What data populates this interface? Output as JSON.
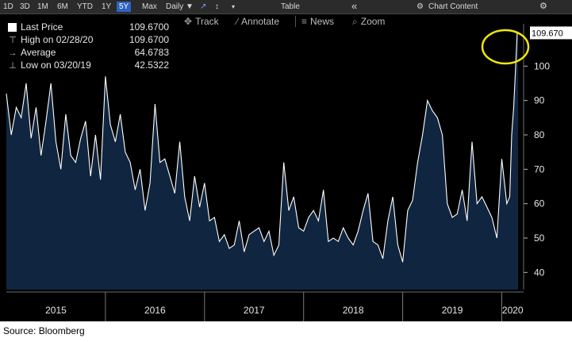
{
  "toolbar": {
    "periods": [
      "1D",
      "3D",
      "1M",
      "6M",
      "YTD",
      "1Y",
      "5Y",
      "Max"
    ],
    "active_period": "5Y",
    "frequency": "Daily ▼",
    "table": "Table",
    "collapse": "«",
    "chart_content": "Chart Content"
  },
  "tools": {
    "track": "Track",
    "annotate": "Annotate",
    "news": "News",
    "zoom": "Zoom"
  },
  "legend": [
    {
      "label": "Last Price",
      "value": "109.6700",
      "marker": "box"
    },
    {
      "label": "High on 02/28/20",
      "value": "109.6700",
      "marker": "high"
    },
    {
      "label": "Average",
      "value": "64.6783",
      "marker": "avg"
    },
    {
      "label": "Low on 03/20/19",
      "value": "42.5322",
      "marker": "low"
    }
  ],
  "colors": {
    "background": "#000000",
    "area": "#10253f",
    "line": "#ffffff",
    "highlight_circle": "#f2e60a",
    "grid": "#7a7a7a"
  },
  "chart_data": {
    "type": "area",
    "title": "",
    "xlabel": "",
    "ylabel": "",
    "ylim": [
      35,
      110
    ],
    "y_ticks": [
      40,
      50,
      60,
      70,
      80,
      90,
      100
    ],
    "x_years": [
      "2015",
      "2016",
      "2017",
      "2018",
      "2019",
      "2020"
    ],
    "xlim": [
      2015.0,
      2020.22
    ],
    "last_value_label": "109.670",
    "series": [
      {
        "x": [
          2015.0,
          2015.05,
          2015.1,
          2015.15,
          2015.2,
          2015.25,
          2015.3,
          2015.35,
          2015.4,
          2015.45,
          2015.5,
          2015.55,
          2015.6,
          2015.65,
          2015.7,
          2015.75,
          2015.8,
          2015.85,
          2015.9,
          2015.95,
          2016.0,
          2016.05,
          2016.1,
          2016.15,
          2016.2,
          2016.25,
          2016.3,
          2016.35,
          2016.4,
          2016.45,
          2016.5,
          2016.55,
          2016.6,
          2016.65,
          2016.7,
          2016.75,
          2016.8,
          2016.85,
          2016.9,
          2016.95,
          2017.0,
          2017.05,
          2017.1,
          2017.15,
          2017.2,
          2017.25,
          2017.3,
          2017.35,
          2017.4,
          2017.45,
          2017.5,
          2017.55,
          2017.6,
          2017.65,
          2017.7,
          2017.75,
          2017.8,
          2017.85,
          2017.9,
          2017.95,
          2018.0,
          2018.05,
          2018.1,
          2018.15,
          2018.2,
          2018.25,
          2018.3,
          2018.35,
          2018.4,
          2018.45,
          2018.5,
          2018.55,
          2018.6,
          2018.65,
          2018.7,
          2018.75,
          2018.8,
          2018.85,
          2018.9,
          2018.95,
          2019.0,
          2019.05,
          2019.1,
          2019.15,
          2019.2,
          2019.25,
          2019.3,
          2019.35,
          2019.4,
          2019.45,
          2019.5,
          2019.55,
          2019.6,
          2019.65,
          2019.7,
          2019.75,
          2019.8,
          2019.85,
          2019.9,
          2019.95,
          2020.0,
          2020.05,
          2020.08,
          2020.1,
          2020.12,
          2020.14,
          2020.155,
          2020.165
        ],
        "values": [
          92,
          80,
          88,
          85,
          95,
          79,
          88,
          74,
          84,
          95,
          78,
          70,
          86,
          74,
          72,
          79,
          84,
          68,
          80,
          67,
          97,
          83,
          78,
          86,
          75,
          72,
          64,
          70,
          58,
          66,
          89,
          72,
          73,
          68,
          63,
          78,
          62,
          55,
          68,
          59,
          66,
          55,
          56,
          49,
          51,
          47,
          48,
          55,
          46,
          51,
          52,
          53,
          49,
          52,
          45,
          48,
          72,
          58,
          62,
          53,
          52,
          56,
          58,
          55,
          64,
          49,
          50,
          49,
          53,
          50,
          48,
          52,
          58,
          63,
          49,
          48,
          44,
          55,
          62,
          48,
          43,
          58,
          61,
          72,
          80,
          90,
          87,
          85,
          80,
          60,
          56,
          57,
          64,
          55,
          78,
          60,
          62,
          59,
          56,
          50,
          73,
          60,
          62,
          80,
          88,
          100,
          109.67,
          109.67
        ]
      }
    ]
  }
}
